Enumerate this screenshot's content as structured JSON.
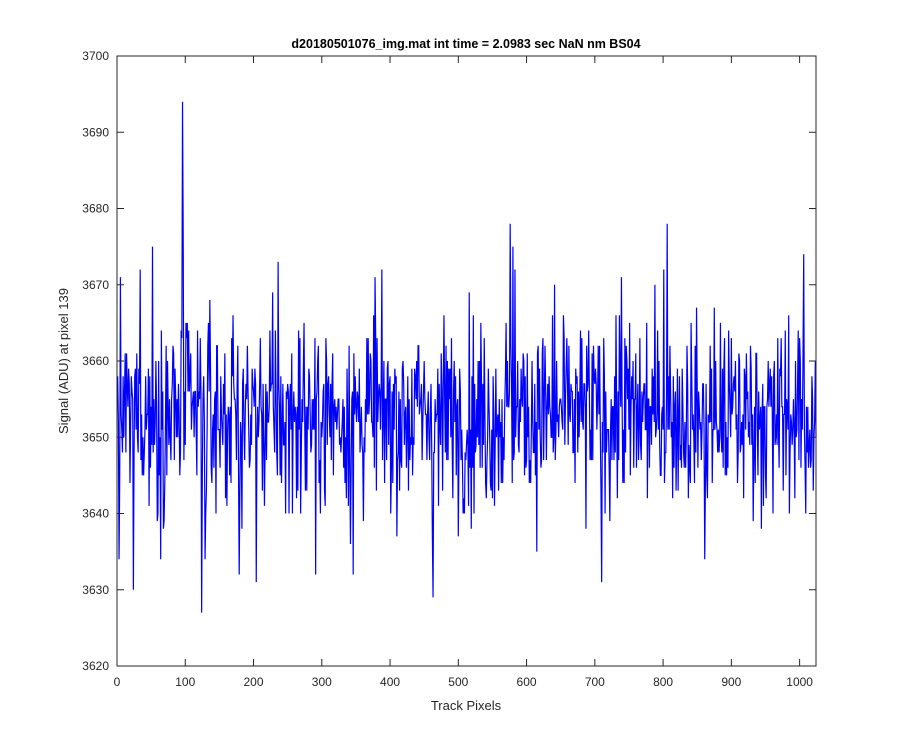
{
  "chart_data": {
    "type": "line",
    "title": "d20180501076_img.mat int time = 2.0983 sec  NaN nm BS04",
    "xlabel": "Track Pixels",
    "ylabel": "Signal (ADU) at pixel 139",
    "xlim": [
      0,
      1024
    ],
    "ylim": [
      3620,
      3700
    ],
    "xticks": [
      0,
      100,
      200,
      300,
      400,
      500,
      600,
      700,
      800,
      900,
      1000
    ],
    "yticks": [
      3620,
      3630,
      3640,
      3650,
      3660,
      3670,
      3680,
      3690,
      3700
    ],
    "grid": false,
    "series_color": "#0000ff",
    "series": [
      {
        "count": 1024,
        "mean": 3653,
        "std": 6.5,
        "min": 3627,
        "max": 3694,
        "notable_points": [
          {
            "x": 2,
            "y": 3634
          },
          {
            "x": 23,
            "y": 3630
          },
          {
            "x": 33,
            "y": 3672
          },
          {
            "x": 51,
            "y": 3675
          },
          {
            "x": 58,
            "y": 3639
          },
          {
            "x": 95,
            "y": 3694
          },
          {
            "x": 96,
            "y": 3676
          },
          {
            "x": 123,
            "y": 3627
          },
          {
            "x": 128,
            "y": 3634
          },
          {
            "x": 178,
            "y": 3632
          },
          {
            "x": 203,
            "y": 3631
          },
          {
            "x": 235,
            "y": 3673
          },
          {
            "x": 246,
            "y": 3640
          },
          {
            "x": 290,
            "y": 3632
          },
          {
            "x": 345,
            "y": 3632
          },
          {
            "x": 377,
            "y": 3671
          },
          {
            "x": 462,
            "y": 3629
          },
          {
            "x": 470,
            "y": 3641
          },
          {
            "x": 575,
            "y": 3678
          },
          {
            "x": 579,
            "y": 3675
          },
          {
            "x": 582,
            "y": 3672
          },
          {
            "x": 640,
            "y": 3670
          },
          {
            "x": 709,
            "y": 3631
          },
          {
            "x": 738,
            "y": 3671
          },
          {
            "x": 800,
            "y": 3672
          },
          {
            "x": 805,
            "y": 3678
          },
          {
            "x": 860,
            "y": 3634
          },
          {
            "x": 960,
            "y": 3640
          },
          {
            "x": 1005,
            "y": 3674
          },
          {
            "x": 1008,
            "y": 3640
          }
        ]
      }
    ]
  }
}
